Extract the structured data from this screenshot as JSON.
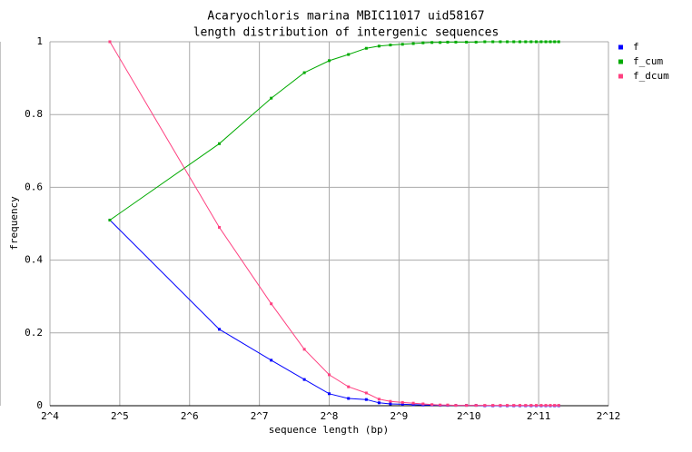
{
  "chart_data": {
    "type": "line",
    "title": "Acaryochloris marina MBIC11017 uid58167",
    "subtitle": "length distribution of intergenic sequences",
    "xlabel": "sequence length (bp)",
    "ylabel": "frequency",
    "xscale": "log",
    "grid": true,
    "legend": "outside-right",
    "x": [
      29,
      86,
      144,
      200,
      256,
      310,
      370,
      420,
      470,
      530,
      590,
      650,
      710,
      770,
      830,
      900,
      1000,
      1100,
      1200,
      1300,
      1400,
      1500,
      1600,
      1700,
      1800,
      1900,
      2000,
      2100,
      2200,
      2300,
      2400,
      2500
    ],
    "series": [
      {
        "name": "f",
        "color": "#0000ff",
        "values": [
          0.51,
          0.21,
          0.125,
          0.072,
          0.033,
          0.02,
          0.017,
          0.008,
          0.005,
          0.004,
          0.003,
          0.002,
          0.002,
          0.001,
          0.001,
          0.001,
          0.001,
          0.001,
          0,
          0,
          0,
          0,
          0,
          0,
          0,
          0,
          0,
          0,
          0,
          0,
          0,
          0
        ]
      },
      {
        "name": "f_cum",
        "color": "#00aa00",
        "values": [
          0.51,
          0.72,
          0.845,
          0.915,
          0.948,
          0.965,
          0.982,
          0.988,
          0.991,
          0.993,
          0.995,
          0.997,
          0.998,
          0.998,
          0.999,
          0.999,
          0.999,
          0.999,
          1,
          1,
          1,
          1,
          1,
          1,
          1,
          1,
          1,
          1,
          1,
          1,
          1,
          1
        ]
      },
      {
        "name": "f_dcum",
        "color": "#ff4080",
        "values": [
          1,
          0.49,
          0.28,
          0.155,
          0.085,
          0.052,
          0.035,
          0.018,
          0.012,
          0.009,
          0.007,
          0.005,
          0.003,
          0.002,
          0.002,
          0.001,
          0.001,
          0.001,
          0.001,
          0.001,
          0.001,
          0.001,
          0.001,
          0.001,
          0.001,
          0.001,
          0.001,
          0.001,
          0.001,
          0.001,
          0.001,
          0.001
        ]
      }
    ],
    "xlim": [
      16,
      4096
    ],
    "xticks": [
      {
        "value": 16,
        "label": "2^4"
      },
      {
        "value": 32,
        "label": "2^5"
      },
      {
        "value": 64,
        "label": "2^6"
      },
      {
        "value": 128,
        "label": "2^7"
      },
      {
        "value": 256,
        "label": "2^8"
      },
      {
        "value": 512,
        "label": "2^9"
      },
      {
        "value": 1024,
        "label": "2^10"
      },
      {
        "value": 2048,
        "label": "2^11"
      },
      {
        "value": 4096,
        "label": "2^12"
      }
    ],
    "ylim": [
      0,
      1
    ],
    "yticks": [
      0,
      0.2,
      0.4,
      0.6,
      0.8,
      1
    ]
  }
}
